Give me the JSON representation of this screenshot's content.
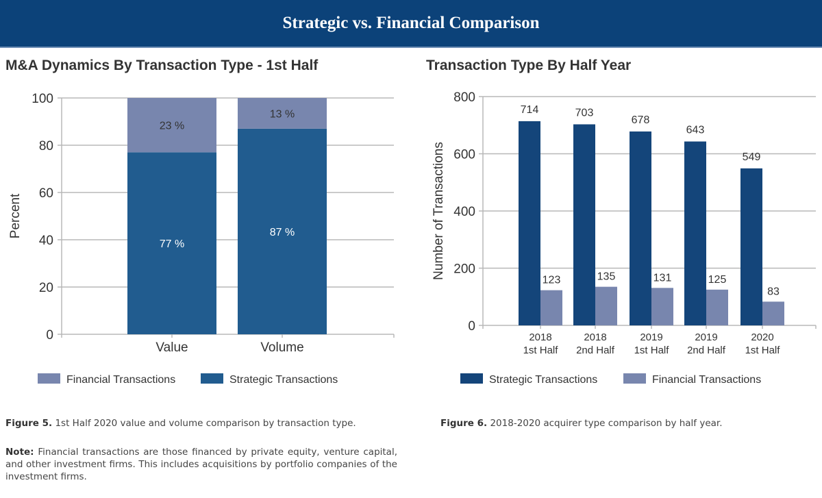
{
  "banner": {
    "title": "Strategic vs. Financial Comparison"
  },
  "colors": {
    "banner": "#0c4279",
    "strategic_left": "#215c8f",
    "strategic_right": "#14457a",
    "financial": "#7886ae"
  },
  "chart_data": [
    {
      "type": "bar",
      "stacked": true,
      "title": "M&A Dynamics By Transaction Type - 1st Half",
      "xlabel": "",
      "ylabel": "Percent",
      "ylim": [
        0,
        100
      ],
      "yticks": [
        0,
        20,
        40,
        60,
        80,
        100
      ],
      "categories": [
        "Value",
        "Volume"
      ],
      "series": [
        {
          "name": "Strategic Transactions",
          "values": [
            77,
            87
          ],
          "labels": [
            "77 %",
            "87 %"
          ]
        },
        {
          "name": "Financial Transactions",
          "values": [
            23,
            13
          ],
          "labels": [
            "23 %",
            "13 %"
          ]
        }
      ],
      "legend": {
        "position": "bottom",
        "entries": [
          "Financial Transactions",
          "Strategic Transactions"
        ]
      },
      "grid": true
    },
    {
      "type": "bar",
      "stacked": false,
      "title": "Transaction Type By Half Year",
      "xlabel": "",
      "ylabel": "Number of Transactions",
      "ylim": [
        0,
        800
      ],
      "yticks": [
        0,
        200,
        400,
        600,
        800
      ],
      "categories": [
        [
          "2018",
          "1st Half"
        ],
        [
          "2018",
          "2nd Half"
        ],
        [
          "2019",
          "1st Half"
        ],
        [
          "2019",
          "2nd Half"
        ],
        [
          "2020",
          "1st Half"
        ]
      ],
      "series": [
        {
          "name": "Strategic Transactions",
          "values": [
            714,
            703,
            678,
            643,
            549
          ]
        },
        {
          "name": "Financial Transactions",
          "values": [
            123,
            135,
            131,
            125,
            83
          ]
        }
      ],
      "legend": {
        "position": "bottom",
        "entries": [
          "Strategic Transactions",
          "Financial Transactions"
        ]
      },
      "grid": true
    }
  ],
  "captions": {
    "fig5_label": "Figure 5.",
    "fig5_text": " 1st Half 2020 value and volume comparison by transaction type.",
    "note_label": "Note:",
    "note_text": " Financial transactions are those financed by private equity, venture capital, and other investment firms. This includes acquisitions by portfolio companies of the investment firms.",
    "fig6_label": "Figure 6.",
    "fig6_text": " 2018-2020 acquirer type comparison by half year."
  }
}
